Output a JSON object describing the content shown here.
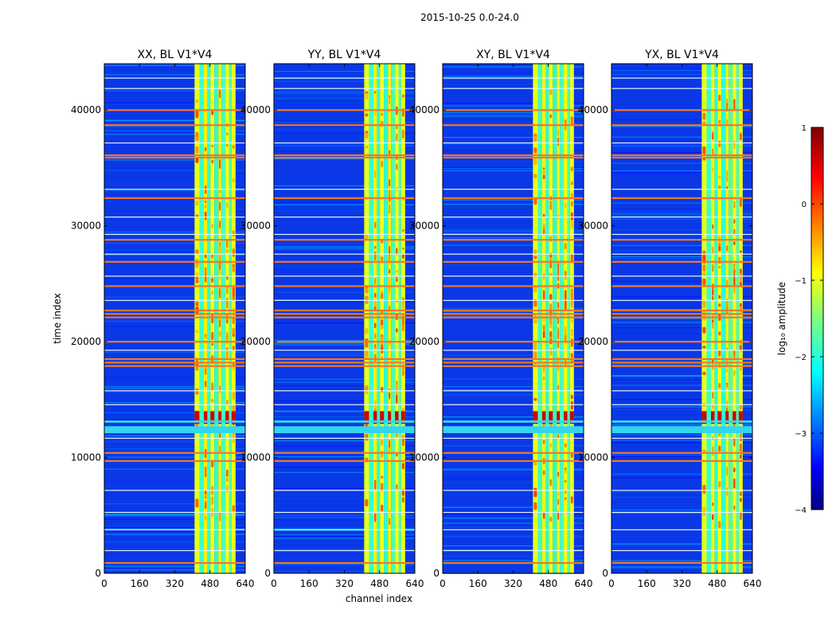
{
  "figure": {
    "title": "2015-10-25 0.0-24.0"
  },
  "chart_data": {
    "type": "heatmap",
    "title": "2015-10-25 0.0-24.0",
    "xlabel": "channel index",
    "ylabel": "time index",
    "xlim": [
      0,
      640
    ],
    "ylim": [
      0,
      44000
    ],
    "xticks": [
      0,
      160,
      320,
      480,
      640
    ],
    "yticks": [
      0,
      10000,
      20000,
      30000,
      40000
    ],
    "panels": [
      {
        "title": "XX, BL V1*V4"
      },
      {
        "title": "YY, BL V1*V4"
      },
      {
        "title": "XY, BL V1*V4"
      },
      {
        "title": "YX, BL V1*V4"
      }
    ],
    "band_channels": [
      [
        410,
        432,
        0.8
      ],
      [
        432,
        452,
        0.25
      ],
      [
        452,
        468,
        0.9
      ],
      [
        468,
        482,
        0.2
      ],
      [
        482,
        500,
        0.85
      ],
      [
        500,
        518,
        0.2
      ],
      [
        518,
        532,
        0.9
      ],
      [
        532,
        550,
        0.3
      ],
      [
        550,
        566,
        0.85
      ],
      [
        566,
        578,
        0.3
      ],
      [
        578,
        596,
        0.8
      ]
    ],
    "rfi_rows": [
      900,
      9700,
      10400,
      17900,
      18200,
      18500,
      20000,
      22100,
      22400,
      22700,
      24800,
      26900,
      28800,
      32400,
      35900,
      36100,
      38700,
      40000
    ],
    "gap_rows": [
      [
        12100,
        12700
      ],
      [
        13000,
        13200
      ]
    ],
    "white_rows": [
      2000,
      3800,
      5300,
      7200,
      11700,
      14600,
      15800,
      19300,
      23600,
      25700,
      27600,
      29300,
      30800,
      33200,
      37200,
      41900,
      42800
    ],
    "colorbar": {
      "label": "log₁₀ amplitude",
      "range": [
        -4,
        1
      ],
      "ticks": [
        "1",
        "0",
        "−1",
        "−2",
        "−3",
        "−4"
      ],
      "colormap": "jet"
    }
  }
}
